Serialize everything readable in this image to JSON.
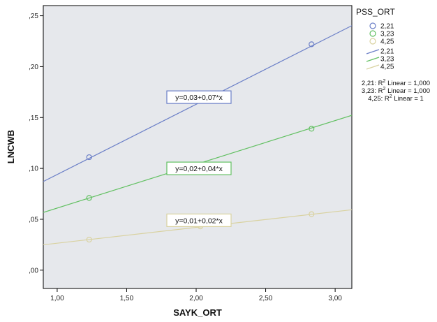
{
  "chart_data": {
    "type": "scatter",
    "xlabel": "SAYK_ORT",
    "ylabel": "LNCWB",
    "xlim": [
      0.9,
      3.12
    ],
    "ylim": [
      -0.018,
      0.26
    ],
    "x_ticks": [
      1.0,
      1.5,
      2.0,
      2.5,
      3.0
    ],
    "x_tick_labels": [
      "1,00",
      "1,50",
      "2,00",
      "2,50",
      "3,00"
    ],
    "y_ticks": [
      0.0,
      0.05,
      0.1,
      0.15,
      0.2,
      0.25
    ],
    "y_tick_labels": [
      ",00",
      ",05",
      ",10",
      ",15",
      ",20",
      ",25"
    ],
    "grid": false,
    "plot_background": "#e6e8ec",
    "legend": {
      "title": "PSS_ORT",
      "placement": "right",
      "marker_labels": [
        "2,21",
        "3,23",
        "4,25"
      ],
      "line_labels": [
        "2,21",
        "3,23",
        "4,25"
      ]
    },
    "r2_labels": [
      {
        "prefix": "2,21: R",
        "sup": "2",
        "suffix": " Linear = 1,000"
      },
      {
        "prefix": "3,23: R",
        "sup": "2",
        "suffix": " Linear = 1,000"
      },
      {
        "prefix": "4,25: R",
        "sup": "2",
        "suffix": " Linear = 1"
      }
    ],
    "series": [
      {
        "name": "2,21",
        "color": "#6b7fc7",
        "points": [
          {
            "x": 1.23,
            "y": 0.111
          },
          {
            "x": 2.83,
            "y": 0.222
          }
        ],
        "fit": {
          "intercept": 0.025,
          "slope": 0.069
        },
        "equation": "y=0,03+0,07*x",
        "equation_pos_x": 2.02,
        "equation_pos_y": 0.17
      },
      {
        "name": "3,23",
        "color": "#62c062",
        "points": [
          {
            "x": 1.23,
            "y": 0.071
          },
          {
            "x": 2.83,
            "y": 0.139
          }
        ],
        "fit": {
          "intercept": 0.018,
          "slope": 0.043
        },
        "equation": "y=0,02+0,04*x",
        "equation_pos_x": 2.02,
        "equation_pos_y": 0.1
      },
      {
        "name": "4,25",
        "color": "#d9d2a0",
        "points": [
          {
            "x": 1.23,
            "y": 0.03
          },
          {
            "x": 2.03,
            "y": 0.043
          },
          {
            "x": 2.83,
            "y": 0.055
          }
        ],
        "fit": {
          "intercept": 0.011,
          "slope": 0.0155
        },
        "equation": "y=0,01+0,02*x",
        "equation_pos_x": 2.02,
        "equation_pos_y": 0.049
      }
    ]
  }
}
